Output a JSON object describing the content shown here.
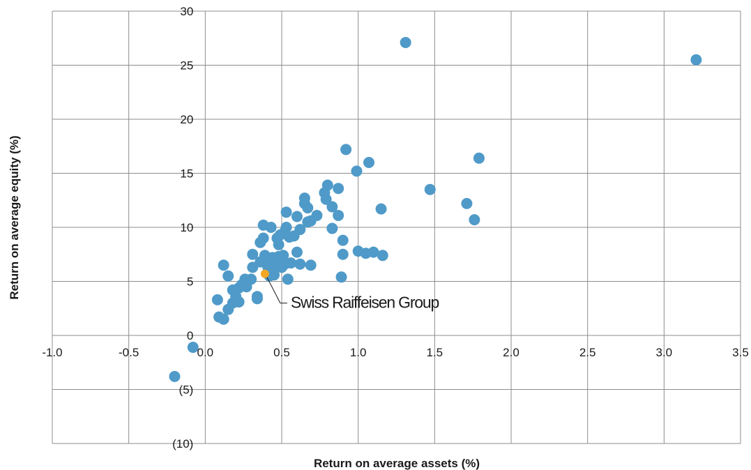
{
  "chart_data": {
    "type": "scatter",
    "title": "",
    "xlabel": "Return on average assets (%)",
    "ylabel": "Return on average equity (%)",
    "xlim": [
      -1.0,
      3.5
    ],
    "ylim": [
      -10,
      30
    ],
    "grid": true,
    "x_ticks": [
      "-1.0",
      "-0.5",
      "0.0",
      "0.5",
      "1.0",
      "1.5",
      "2.0",
      "2.5",
      "3.0",
      "3.5"
    ],
    "y_ticks": [
      "30",
      "25",
      "20",
      "15",
      "10",
      "5",
      "0",
      "(5)",
      "(10)"
    ],
    "colors": {
      "points": "#4f9ac8",
      "highlight": "#f5a623",
      "grid": "#8c8c8c"
    },
    "series": [
      {
        "points": [
          [
            -0.2,
            -3.8
          ],
          [
            -0.08,
            -1.1
          ],
          [
            0.08,
            3.3
          ],
          [
            0.09,
            1.7
          ],
          [
            0.12,
            1.5
          ],
          [
            0.12,
            6.5
          ],
          [
            0.15,
            5.5
          ],
          [
            0.15,
            2.4
          ],
          [
            0.18,
            4.2
          ],
          [
            0.18,
            3.0
          ],
          [
            0.2,
            3.6
          ],
          [
            0.22,
            4.4
          ],
          [
            0.22,
            3.1
          ],
          [
            0.24,
            4.7
          ],
          [
            0.26,
            5.2
          ],
          [
            0.27,
            4.5
          ],
          [
            0.3,
            5.2
          ],
          [
            0.31,
            7.5
          ],
          [
            0.31,
            6.3
          ],
          [
            0.34,
            3.6
          ],
          [
            0.34,
            3.4
          ],
          [
            0.36,
            8.6
          ],
          [
            0.36,
            6.8
          ],
          [
            0.38,
            10.2
          ],
          [
            0.38,
            9.0
          ],
          [
            0.39,
            7.4
          ],
          [
            0.4,
            7.0
          ],
          [
            0.41,
            6.3
          ],
          [
            0.42,
            5.5
          ],
          [
            0.43,
            10.0
          ],
          [
            0.44,
            7.2
          ],
          [
            0.44,
            6.7
          ],
          [
            0.45,
            5.6
          ],
          [
            0.46,
            6.5
          ],
          [
            0.47,
            9.0
          ],
          [
            0.48,
            8.4
          ],
          [
            0.48,
            7.3
          ],
          [
            0.49,
            9.3
          ],
          [
            0.5,
            6.3
          ],
          [
            0.51,
            7.4
          ],
          [
            0.52,
            9.6
          ],
          [
            0.52,
            6.6
          ],
          [
            0.53,
            10.0
          ],
          [
            0.53,
            11.4
          ],
          [
            0.54,
            5.2
          ],
          [
            0.55,
            9.1
          ],
          [
            0.56,
            6.7
          ],
          [
            0.58,
            9.2
          ],
          [
            0.6,
            11.0
          ],
          [
            0.6,
            7.7
          ],
          [
            0.62,
            9.8
          ],
          [
            0.62,
            6.6
          ],
          [
            0.65,
            12.7
          ],
          [
            0.65,
            12.2
          ],
          [
            0.67,
            10.5
          ],
          [
            0.67,
            11.8
          ],
          [
            0.69,
            10.6
          ],
          [
            0.69,
            6.5
          ],
          [
            0.73,
            11.1
          ],
          [
            0.78,
            13.2
          ],
          [
            0.79,
            12.6
          ],
          [
            0.8,
            13.9
          ],
          [
            0.83,
            11.9
          ],
          [
            0.83,
            9.9
          ],
          [
            0.87,
            13.6
          ],
          [
            0.87,
            11.1
          ],
          [
            0.89,
            5.4
          ],
          [
            0.9,
            8.8
          ],
          [
            0.9,
            7.5
          ],
          [
            0.92,
            17.2
          ],
          [
            0.99,
            15.2
          ],
          [
            1.0,
            7.8
          ],
          [
            1.05,
            7.6
          ],
          [
            1.07,
            16.0
          ],
          [
            1.1,
            7.7
          ],
          [
            1.15,
            11.7
          ],
          [
            1.16,
            7.4
          ],
          [
            1.31,
            27.1
          ],
          [
            1.47,
            13.5
          ],
          [
            1.71,
            12.2
          ],
          [
            1.76,
            10.7
          ],
          [
            1.79,
            16.4
          ],
          [
            3.21,
            25.5
          ]
        ]
      }
    ],
    "highlight": {
      "label": "Swiss Raiffeisen Group",
      "x": 0.39,
      "y": 5.7
    }
  }
}
